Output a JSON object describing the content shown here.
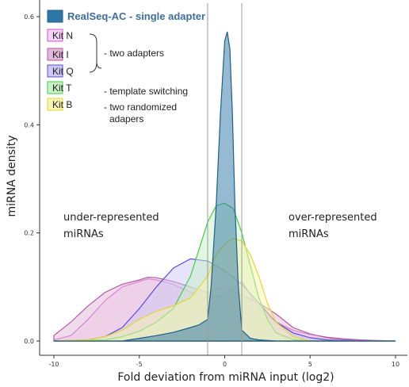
{
  "chart_data": {
    "type": "area",
    "xlabel": "Fold deviation from miRNA input (log2)",
    "ylabel": "miRNA density",
    "xlim": [
      -10,
      10
    ],
    "ylim": [
      0,
      0.6
    ],
    "x_ticks": [
      -10,
      -5,
      0,
      5,
      10
    ],
    "y_ticks": [
      0.0,
      0.2,
      0.4,
      0.6
    ],
    "x_tick_labels": [
      "-10",
      "-5",
      "0",
      "5",
      "10"
    ],
    "y_tick_labels": [
      "0.0",
      "0.2",
      "0.4",
      "0.6"
    ],
    "vertical_lines": [
      -1,
      1
    ],
    "grid": false,
    "legend_position": "top-left",
    "series": [
      {
        "name": "Kit N",
        "fill": "#f7d4f7",
        "stroke": "#cc55cc",
        "x": [
          -10,
          -9,
          -8,
          -7,
          -6,
          -5,
          -4.5,
          -4,
          -3,
          -2,
          -1,
          0,
          1,
          2,
          3,
          4,
          5,
          6,
          7,
          8,
          9,
          10
        ],
        "y": [
          0.002,
          0.01,
          0.04,
          0.075,
          0.1,
          0.11,
          0.115,
          0.113,
          0.105,
          0.09,
          0.08,
          0.085,
          0.11,
          0.06,
          0.035,
          0.02,
          0.012,
          0.007,
          0.004,
          0.002,
          0.001,
          0.0
        ]
      },
      {
        "name": "Kit I",
        "fill": "#e2b8d8",
        "stroke": "#b55aa5",
        "x": [
          -10,
          -9,
          -8,
          -7,
          -6,
          -5,
          -4.5,
          -4,
          -3,
          -2,
          -1,
          0,
          1,
          2,
          3,
          4,
          5,
          6,
          7,
          8,
          9,
          10
        ],
        "y": [
          0.01,
          0.035,
          0.065,
          0.09,
          0.105,
          0.113,
          0.118,
          0.117,
          0.11,
          0.1,
          0.09,
          0.1,
          0.085,
          0.07,
          0.05,
          0.025,
          0.013,
          0.006,
          0.003,
          0.001,
          0.0,
          0.0
        ]
      },
      {
        "name": "Kit Q",
        "fill": "#cdc8f5",
        "stroke": "#5a4fd6",
        "x": [
          -10,
          -8,
          -7,
          -6,
          -5,
          -4,
          -3,
          -2,
          -1,
          0,
          1,
          2,
          3,
          4,
          5,
          6,
          7,
          8,
          10
        ],
        "y": [
          0.0,
          0.002,
          0.008,
          0.025,
          0.06,
          0.1,
          0.135,
          0.152,
          0.148,
          0.13,
          0.105,
          0.07,
          0.035,
          0.015,
          0.006,
          0.002,
          0.001,
          0.0,
          0.0
        ]
      },
      {
        "name": "Kit T",
        "fill": "#c7f2c7",
        "stroke": "#44cc44",
        "x": [
          -10,
          -7,
          -6,
          -5,
          -4,
          -3,
          -2,
          -1.5,
          -1,
          -0.5,
          0,
          0.5,
          1,
          1.5,
          2,
          2.5,
          3,
          4,
          5,
          10
        ],
        "y": [
          0.0,
          0.002,
          0.008,
          0.018,
          0.035,
          0.06,
          0.12,
          0.17,
          0.22,
          0.25,
          0.255,
          0.245,
          0.2,
          0.14,
          0.08,
          0.04,
          0.015,
          0.003,
          0.0,
          0.0
        ]
      },
      {
        "name": "Kit B",
        "fill": "#f7f3b0",
        "stroke": "#e2d832",
        "x": [
          -10,
          -8,
          -7,
          -6,
          -5,
          -4,
          -3,
          -2,
          -1,
          -0.5,
          0,
          0.5,
          1,
          1.5,
          2,
          2.5,
          3,
          4,
          5,
          10
        ],
        "y": [
          0.0,
          0.002,
          0.008,
          0.02,
          0.04,
          0.055,
          0.065,
          0.08,
          0.12,
          0.16,
          0.18,
          0.19,
          0.185,
          0.16,
          0.12,
          0.07,
          0.035,
          0.008,
          0.0,
          0.0
        ]
      },
      {
        "name": "RealSeq-AC - single adapter",
        "fill": "#2d76a6",
        "stroke": "#1d5f8c",
        "x": [
          -10,
          -6,
          -5,
          -4,
          -3,
          -2,
          -1.5,
          -1,
          -0.8,
          -0.5,
          -0.25,
          0,
          0.15,
          0.3,
          0.45,
          0.6,
          0.8,
          1,
          1.5,
          2,
          3,
          4,
          10
        ],
        "y": [
          0.0,
          0.0,
          0.005,
          0.01,
          0.016,
          0.025,
          0.03,
          0.04,
          0.1,
          0.25,
          0.42,
          0.555,
          0.572,
          0.54,
          0.42,
          0.25,
          0.1,
          0.02,
          0.005,
          0.002,
          0.0,
          0.0,
          0.0
        ]
      }
    ]
  },
  "legend": {
    "title": "RealSeq-AC - single adapter",
    "items": [
      {
        "label": "Kit N",
        "fill": "#f7d4f7",
        "stroke": "#cc55cc"
      },
      {
        "label": "Kit I",
        "fill": "#e2b8d8",
        "stroke": "#b55aa5"
      },
      {
        "label": "Kit Q",
        "fill": "#cdc8f5",
        "stroke": "#5a4fd6"
      },
      {
        "label": "Kit T",
        "fill": "#c7f2c7",
        "stroke": "#44cc44"
      },
      {
        "label": "Kit B",
        "fill": "#f7f3b0",
        "stroke": "#e2d832"
      }
    ],
    "notes": {
      "two_adapters": "- two adapters",
      "template_switching": "- template switching",
      "randomized_line1": "- two randomized",
      "randomized_line2": "adapers"
    }
  },
  "annotations": {
    "under_line1": "under-represented",
    "under_line2": "miRNAs",
    "over_line1": "over-represented",
    "over_line2": "miRNAs"
  }
}
